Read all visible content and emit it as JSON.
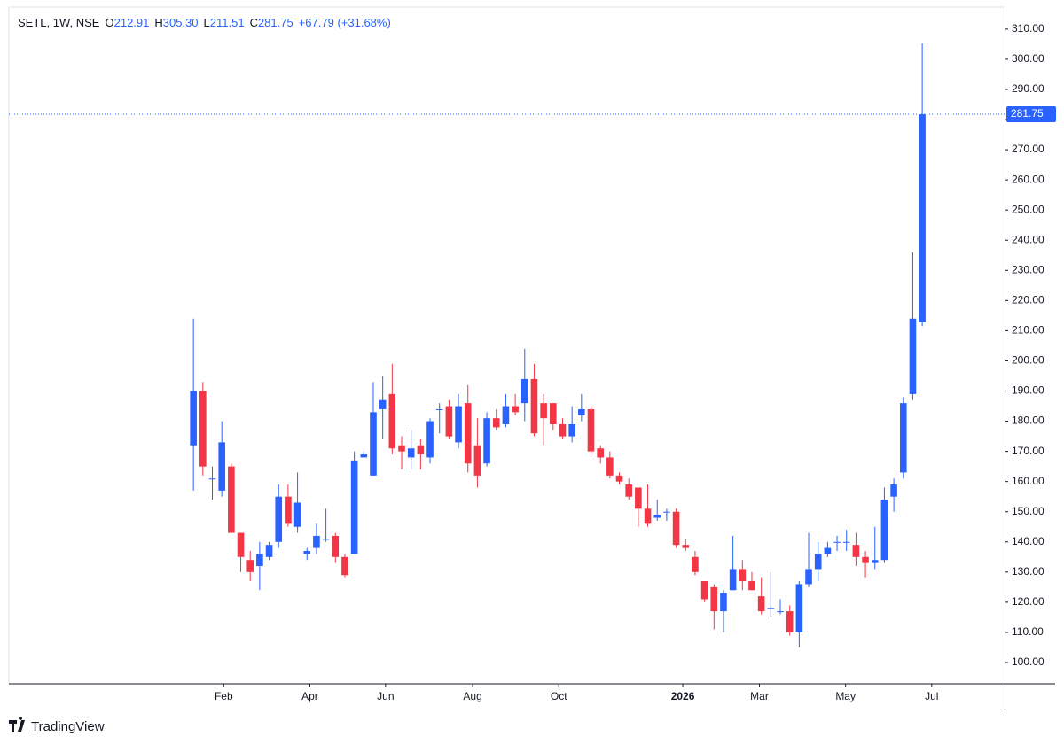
{
  "chart_data": {
    "type": "candlestick",
    "legend": {
      "symbol": "SETL, 1W, NSE",
      "items": [
        {
          "key": "O",
          "value": "212.91"
        },
        {
          "key": "H",
          "value": "305.30"
        },
        {
          "key": "L",
          "value": "211.51"
        },
        {
          "key": "C",
          "value": "281.75"
        }
      ],
      "change": "+67.79 (+31.68%)"
    },
    "up_color": "#2962ff",
    "down_color": "#f23645",
    "open": [
      172,
      190,
      161,
      157,
      165,
      143,
      134,
      132,
      135,
      140,
      155,
      145,
      136,
      138,
      141,
      142,
      135,
      136,
      168,
      162,
      184,
      189,
      172,
      168,
      172,
      168,
      184,
      185,
      173,
      186,
      172,
      166,
      181,
      179,
      185,
      186,
      194,
      186,
      186,
      179,
      175,
      182,
      184,
      171,
      168,
      162,
      159,
      158,
      151,
      148,
      150,
      150,
      139,
      135,
      127,
      125,
      117,
      124,
      131,
      127,
      122,
      118,
      117,
      117,
      110,
      126,
      131,
      136,
      140,
      140,
      139,
      135,
      133,
      134,
      155,
      163,
      189,
      212.91
    ],
    "high": [
      214,
      193,
      165,
      180,
      166,
      143,
      137,
      140,
      140,
      159,
      159,
      163,
      138,
      146,
      151,
      143,
      136,
      170,
      170,
      193,
      195,
      199,
      175,
      177,
      174,
      181,
      186,
      187,
      189,
      192,
      181,
      183,
      184,
      189,
      189,
      204,
      199,
      189,
      186,
      181,
      185,
      189,
      185,
      172,
      170,
      163,
      161,
      158,
      159,
      154,
      151,
      151,
      141,
      137,
      127,
      126,
      124,
      142,
      134,
      130,
      128,
      130,
      121,
      119,
      127,
      143,
      140,
      140,
      142,
      144,
      143,
      137,
      145,
      158,
      161,
      188,
      236,
      305.3
    ],
    "low": [
      157,
      162,
      154,
      155,
      143,
      130,
      127,
      124,
      134,
      138,
      145,
      143,
      134,
      136,
      140,
      133,
      128,
      136,
      168,
      162,
      174,
      169,
      164,
      164,
      164,
      166,
      176,
      174,
      171,
      163,
      158,
      165,
      177,
      178,
      182,
      180,
      175,
      172,
      177,
      174,
      173,
      180,
      169,
      166,
      161,
      159,
      154,
      145,
      145,
      147,
      147,
      138,
      137,
      129,
      120,
      111,
      110,
      124,
      124,
      124,
      116,
      115,
      116,
      109,
      105,
      125,
      127,
      135,
      137,
      137,
      132,
      128,
      131,
      133,
      150,
      161,
      187,
      211.51
    ],
    "close": [
      190,
      165,
      161,
      173,
      143,
      135,
      130,
      136,
      139,
      155,
      146,
      153,
      137,
      142,
      141,
      135,
      129,
      167,
      169,
      183,
      187,
      171,
      170,
      171,
      169,
      180,
      184,
      175,
      185,
      166,
      162,
      181,
      178,
      185,
      183,
      194,
      176,
      181,
      179,
      175,
      179,
      184,
      170,
      168,
      162,
      160,
      155,
      151,
      146,
      149,
      150,
      139,
      138,
      130,
      121,
      117,
      123,
      131,
      127,
      124,
      117,
      118,
      117,
      110,
      126,
      131,
      136,
      138,
      140,
      140,
      135,
      133,
      134,
      154,
      159,
      186,
      214,
      281.75
    ],
    "last_price": 281.75,
    "last_price_label": "281.75",
    "ylim": [
      92.95,
      317.3
    ],
    "yticks": [
      {
        "value": 100,
        "label": "100.00"
      },
      {
        "value": 110,
        "label": "110.00"
      },
      {
        "value": 120,
        "label": "120.00"
      },
      {
        "value": 130,
        "label": "130.00"
      },
      {
        "value": 140,
        "label": "140.00"
      },
      {
        "value": 150,
        "label": "150.00"
      },
      {
        "value": 160,
        "label": "160.00"
      },
      {
        "value": 170,
        "label": "170.00"
      },
      {
        "value": 180,
        "label": "180.00"
      },
      {
        "value": 190,
        "label": "190.00"
      },
      {
        "value": 200,
        "label": "200.00"
      },
      {
        "value": 210,
        "label": "210.00"
      },
      {
        "value": 220,
        "label": "220.00"
      },
      {
        "value": 230,
        "label": "230.00"
      },
      {
        "value": 240,
        "label": "240.00"
      },
      {
        "value": 250,
        "label": "250.00"
      },
      {
        "value": 260,
        "label": "260.00"
      },
      {
        "value": 270,
        "label": "270.00"
      },
      {
        "value": 280,
        "label": "280.00"
      },
      {
        "value": 290,
        "label": "290.00"
      },
      {
        "value": 300,
        "label": "300.00"
      },
      {
        "value": 310,
        "label": "310.00"
      }
    ],
    "xlim": [
      -19.5,
      85.7
    ],
    "xticks": [
      {
        "value": 3.2,
        "label": "Feb"
      },
      {
        "value": 12.3,
        "label": "Apr"
      },
      {
        "value": 20.3,
        "label": "Jun"
      },
      {
        "value": 29.5,
        "label": "Aug"
      },
      {
        "value": 38.6,
        "label": "Oct"
      },
      {
        "value": 51.7,
        "label": "2026"
      },
      {
        "value": 59.8,
        "label": "Mar"
      },
      {
        "value": 68.9,
        "label": "May"
      },
      {
        "value": 78,
        "label": "Jul"
      }
    ]
  },
  "footer": {
    "brand": "TradingView"
  }
}
